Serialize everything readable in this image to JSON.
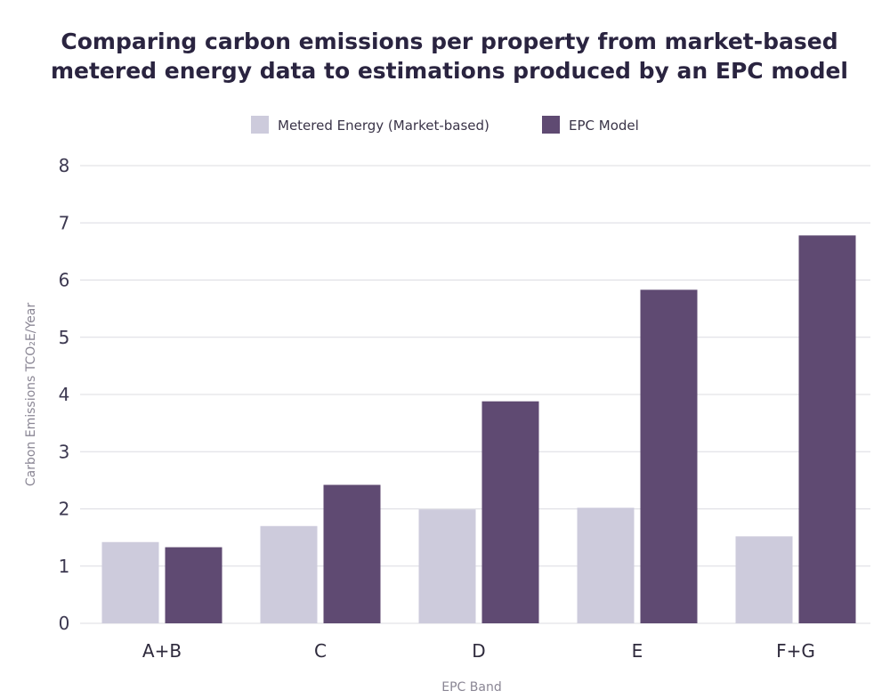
{
  "chart_data": {
    "type": "bar",
    "title_lines": [
      "Comparing carbon emissions per property from market-based",
      "metered energy data to estimations produced by an EPC model"
    ],
    "categories": [
      "A+B",
      "C",
      "D",
      "E",
      "F+G"
    ],
    "series": [
      {
        "name": "Metered Energy (Market-based)",
        "color": "#cdcbdc",
        "values": [
          1.42,
          1.7,
          1.99,
          2.02,
          1.52
        ]
      },
      {
        "name": "EPC Model",
        "color": "#5f4a72",
        "values": [
          1.33,
          2.42,
          3.88,
          5.83,
          6.78
        ]
      }
    ],
    "xlabel": "EPC Band",
    "ylabel": "Carbon Emissions TCO₂E/Year",
    "ylim": [
      0,
      8
    ],
    "yticks": [
      0,
      1,
      2,
      3,
      4,
      5,
      6,
      7,
      8
    ],
    "grid": true,
    "legend_position": "top-center"
  }
}
